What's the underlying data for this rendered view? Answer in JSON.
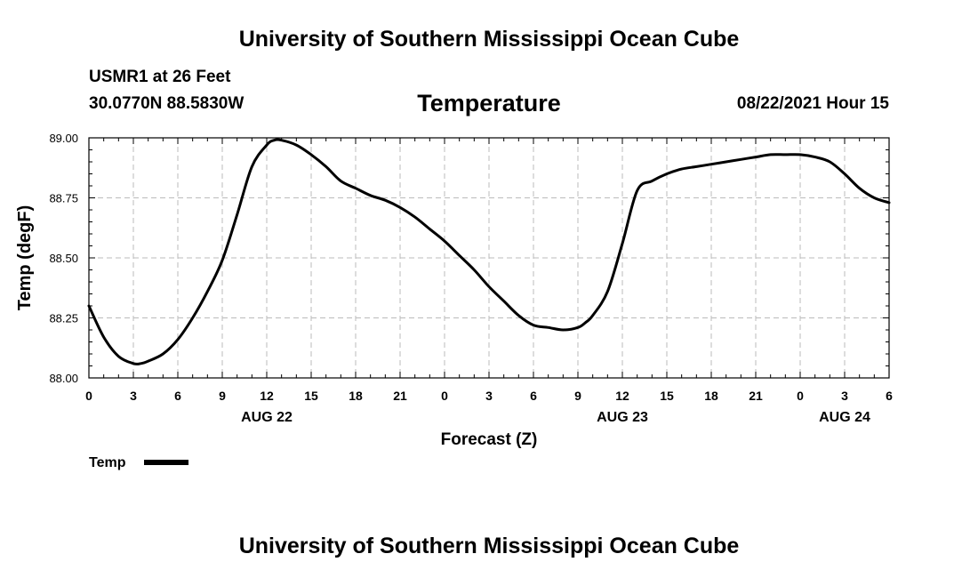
{
  "header": {
    "title": "University of Southern Mississippi Ocean Cube",
    "station": "USMR1 at 26 Feet",
    "coords": "30.0770N  88.5830W",
    "parameter": "Temperature",
    "datetime": "08/22/2021 Hour 15"
  },
  "footer": {
    "title": "University of Southern Mississippi Ocean Cube"
  },
  "chart_data": {
    "type": "line",
    "xlabel": "Forecast (Z)",
    "ylabel": "Temp (degF)",
    "xlim": [
      0,
      54
    ],
    "ylim": [
      88.0,
      89.0
    ],
    "yticks": [
      "88.00",
      "88.25",
      "88.50",
      "88.75",
      "89.00"
    ],
    "xtick_labels": [
      "0",
      "3",
      "6",
      "9",
      "12",
      "15",
      "18",
      "21",
      "0",
      "3",
      "6",
      "9",
      "12",
      "15",
      "18",
      "21",
      "0",
      "3",
      "6"
    ],
    "day_labels": [
      {
        "x": 12,
        "label": "AUG 22"
      },
      {
        "x": 36,
        "label": "AUG 23"
      },
      {
        "x": 51,
        "label": "AUG 24"
      }
    ],
    "grid": true,
    "legend": "bottom-left",
    "series": [
      {
        "name": "Temp",
        "color": "#000000",
        "x": [
          0,
          1,
          2,
          3,
          3.5,
          4,
          5,
          6,
          7,
          8,
          9,
          10,
          11,
          12,
          12.5,
          13,
          14,
          15,
          16,
          17,
          18,
          19,
          20,
          21,
          22,
          23,
          24,
          25,
          26,
          27,
          28,
          29,
          30,
          31,
          32,
          33,
          33.5,
          34,
          35,
          36,
          37,
          38,
          39,
          40,
          41,
          42,
          43,
          44,
          45,
          46,
          47,
          48,
          49,
          50,
          51,
          52,
          53,
          54
        ],
        "y": [
          88.3,
          88.17,
          88.09,
          88.06,
          88.06,
          88.07,
          88.1,
          88.16,
          88.25,
          88.36,
          88.49,
          88.68,
          88.88,
          88.97,
          88.99,
          88.99,
          88.97,
          88.93,
          88.88,
          88.82,
          88.79,
          88.76,
          88.74,
          88.71,
          88.67,
          88.62,
          88.57,
          88.51,
          88.45,
          88.38,
          88.32,
          88.26,
          88.22,
          88.21,
          88.2,
          88.21,
          88.23,
          88.26,
          88.36,
          88.56,
          88.78,
          88.82,
          88.85,
          88.87,
          88.88,
          88.89,
          88.9,
          88.91,
          88.92,
          88.93,
          88.93,
          88.93,
          88.92,
          88.9,
          88.85,
          88.79,
          88.75,
          88.73
        ]
      }
    ]
  }
}
